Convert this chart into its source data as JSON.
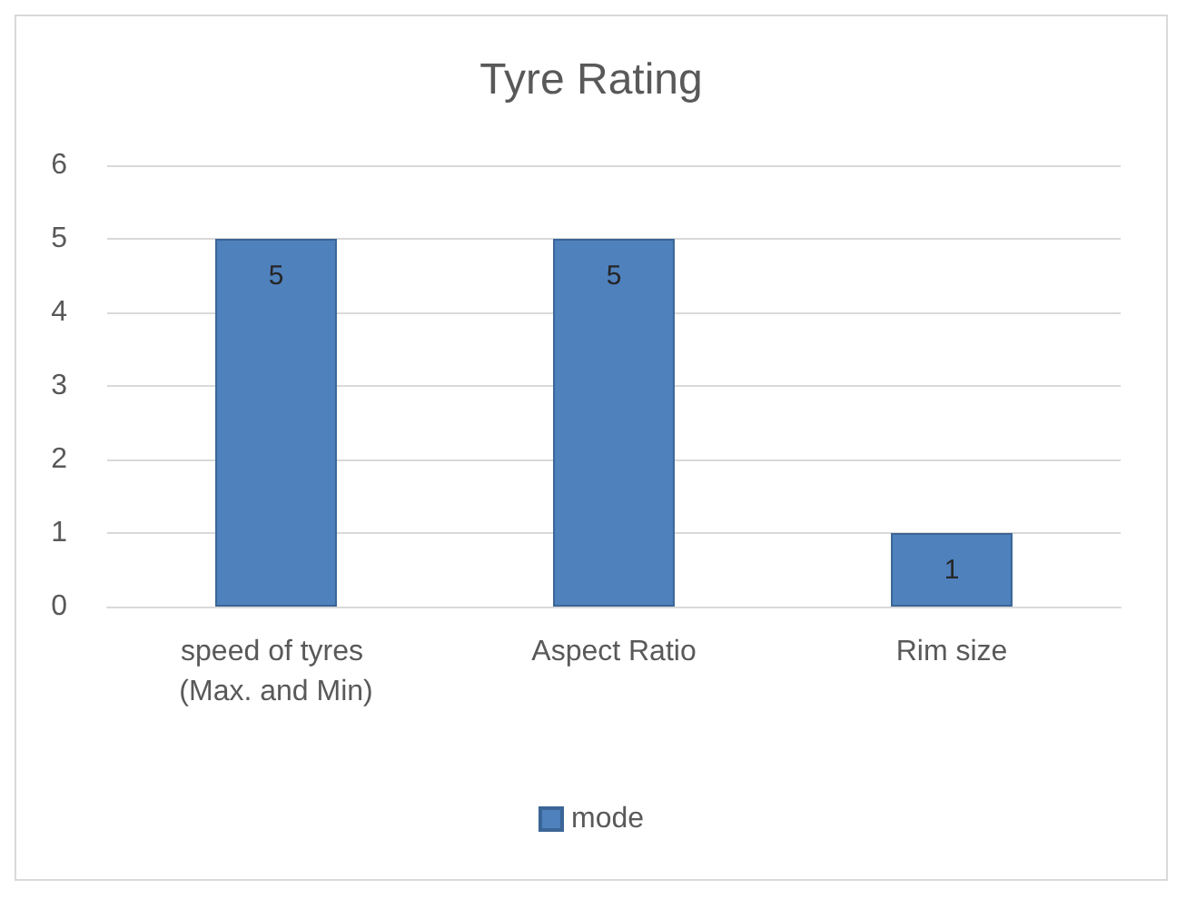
{
  "chart_data": {
    "type": "bar",
    "title": "Tyre Rating",
    "categories": [
      "speed of tyres (Max. and Min)",
      "Aspect Ratio",
      "Rim size"
    ],
    "series": [
      {
        "name": "mode",
        "color": "#4f81bd",
        "values": [
          5,
          5,
          1
        ]
      }
    ],
    "ylim": [
      0,
      6
    ],
    "yticks": [
      0,
      1,
      2,
      3,
      4,
      5,
      6
    ],
    "grid": "y",
    "legend": "bottom",
    "data_labels": true
  }
}
